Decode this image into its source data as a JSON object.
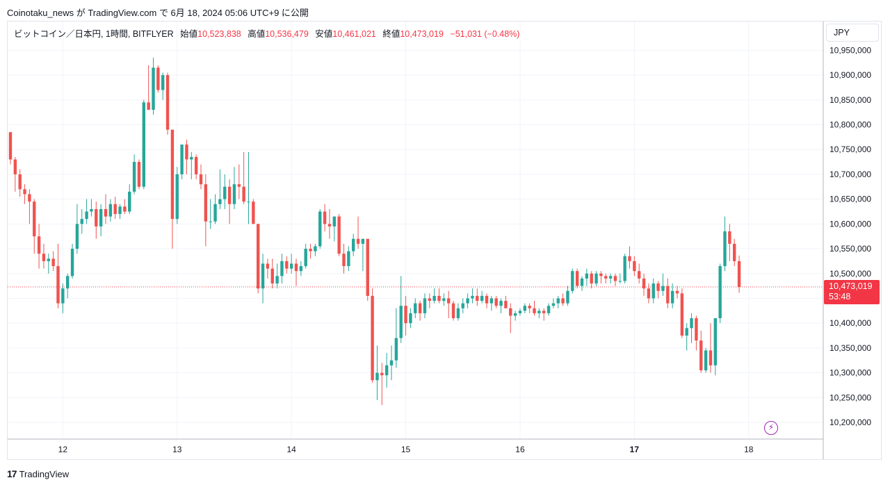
{
  "header": {
    "publish_line": "Coinotaku_news が TradingView.com で 6月 18, 2024 05:06 UTC+9 に公開"
  },
  "legend": {
    "symbol": "ビットコイン／日本円, 1時間, BITFLYER",
    "open_label": "始値",
    "open": "10,523,838",
    "high_label": "高値",
    "high": "10,536,479",
    "low_label": "安値",
    "low": "10,461,021",
    "close_label": "終値",
    "close": "10,473,019",
    "change": "−51,031 (−0.48%)"
  },
  "currency": "JPY",
  "price_tag": {
    "price": "10,473,019",
    "countdown": "53:48"
  },
  "footer": {
    "brand": "TradingView"
  },
  "colors": {
    "up": "#26a69a",
    "down": "#ef5350",
    "grid": "#f0f3fa",
    "last_price": "#f23645"
  },
  "icons": {
    "alert": "lightning-icon",
    "logo": "tradingview-logo-icon"
  },
  "chart_data": {
    "type": "candlestick",
    "ylim": [
      10175000,
      10975000
    ],
    "yticks": [
      "10,200,000",
      "10,250,000",
      "10,300,000",
      "10,350,000",
      "10,400,000",
      "10,450,000",
      "10,500,000",
      "10,550,000",
      "10,600,000",
      "10,650,000",
      "10,700,000",
      "10,750,000",
      "10,800,000",
      "10,850,000",
      "10,900,000",
      "10,950,000"
    ],
    "xticks": [
      {
        "label": "12",
        "hour": 11
      },
      {
        "label": "13",
        "hour": 35
      },
      {
        "label": "14",
        "hour": 59
      },
      {
        "label": "15",
        "hour": 83
      },
      {
        "label": "16",
        "hour": 107
      },
      {
        "label": "17",
        "hour": 131,
        "bold": true
      },
      {
        "label": "18",
        "hour": 155
      }
    ],
    "last_price": 10473019,
    "bars": [
      [
        10785000,
        10785000,
        10720000,
        10730000
      ],
      [
        10730000,
        10735000,
        10665000,
        10700000
      ],
      [
        10700000,
        10710000,
        10655000,
        10670000
      ],
      [
        10670000,
        10680000,
        10640000,
        10660000
      ],
      [
        10660000,
        10670000,
        10600000,
        10645000
      ],
      [
        10645000,
        10650000,
        10540000,
        10575000
      ],
      [
        10575000,
        10600000,
        10510000,
        10540000
      ],
      [
        10540000,
        10560000,
        10510000,
        10525000
      ],
      [
        10525000,
        10540000,
        10500000,
        10530000
      ],
      [
        10530000,
        10545000,
        10505000,
        10515000
      ],
      [
        10515000,
        10560000,
        10430000,
        10440000
      ],
      [
        10440000,
        10480000,
        10420000,
        10470000
      ],
      [
        10470000,
        10500000,
        10450000,
        10495000
      ],
      [
        10495000,
        10560000,
        10490000,
        10550000
      ],
      [
        10550000,
        10640000,
        10540000,
        10600000
      ],
      [
        10600000,
        10630000,
        10580000,
        10610000
      ],
      [
        10610000,
        10650000,
        10600000,
        10625000
      ],
      [
        10625000,
        10650000,
        10615000,
        10630000
      ],
      [
        10630000,
        10645000,
        10570000,
        10595000
      ],
      [
        10595000,
        10640000,
        10575000,
        10630000
      ],
      [
        10630000,
        10660000,
        10600000,
        10615000
      ],
      [
        10615000,
        10650000,
        10605000,
        10640000
      ],
      [
        10640000,
        10655000,
        10610000,
        10620000
      ],
      [
        10620000,
        10640000,
        10610000,
        10635000
      ],
      [
        10635000,
        10650000,
        10620000,
        10625000
      ],
      [
        10625000,
        10680000,
        10620000,
        10665000
      ],
      [
        10665000,
        10740000,
        10660000,
        10725000
      ],
      [
        10725000,
        10730000,
        10670000,
        10675000
      ],
      [
        10675000,
        10850000,
        10670000,
        10845000
      ],
      [
        10845000,
        10920000,
        10830000,
        10830000
      ],
      [
        10830000,
        10935000,
        10820000,
        10915000
      ],
      [
        10915000,
        10920000,
        10865000,
        10870000
      ],
      [
        10870000,
        10905000,
        10850000,
        10900000
      ],
      [
        10900000,
        10905000,
        10780000,
        10790000
      ],
      [
        10790000,
        10790000,
        10550000,
        10610000
      ],
      [
        10610000,
        10715000,
        10600000,
        10700000
      ],
      [
        10700000,
        10760000,
        10690000,
        10760000
      ],
      [
        10760000,
        10770000,
        10700000,
        10730000
      ],
      [
        10730000,
        10745000,
        10690000,
        10735000
      ],
      [
        10735000,
        10740000,
        10690000,
        10700000
      ],
      [
        10700000,
        10720000,
        10670000,
        10680000
      ],
      [
        10680000,
        10700000,
        10555000,
        10605000
      ],
      [
        10605000,
        10650000,
        10590000,
        10605000
      ],
      [
        10605000,
        10660000,
        10600000,
        10640000
      ],
      [
        10640000,
        10710000,
        10630000,
        10650000
      ],
      [
        10650000,
        10700000,
        10630000,
        10675000
      ],
      [
        10675000,
        10690000,
        10600000,
        10640000
      ],
      [
        10640000,
        10715000,
        10630000,
        10680000
      ],
      [
        10680000,
        10720000,
        10650000,
        10675000
      ],
      [
        10675000,
        10745000,
        10640000,
        10645000
      ],
      [
        10645000,
        10745000,
        10600000,
        10645000
      ],
      [
        10645000,
        10650000,
        10600000,
        10600000
      ],
      [
        10600000,
        10600000,
        10460000,
        10470000
      ],
      [
        10470000,
        10540000,
        10440000,
        10520000
      ],
      [
        10520000,
        10530000,
        10490000,
        10510000
      ],
      [
        10510000,
        10530000,
        10470000,
        10480000
      ],
      [
        10480000,
        10520000,
        10470000,
        10495000
      ],
      [
        10495000,
        10540000,
        10480000,
        10525000
      ],
      [
        10525000,
        10535000,
        10500000,
        10510000
      ],
      [
        10510000,
        10540000,
        10500000,
        10520000
      ],
      [
        10520000,
        10530000,
        10475000,
        10505000
      ],
      [
        10505000,
        10525000,
        10495000,
        10515000
      ],
      [
        10515000,
        10560000,
        10510000,
        10550000
      ],
      [
        10550000,
        10560000,
        10530000,
        10545000
      ],
      [
        10545000,
        10560000,
        10535000,
        10555000
      ],
      [
        10555000,
        10630000,
        10550000,
        10625000
      ],
      [
        10625000,
        10640000,
        10585000,
        10600000
      ],
      [
        10600000,
        10630000,
        10570000,
        10595000
      ],
      [
        10595000,
        10615000,
        10565000,
        10615000
      ],
      [
        10615000,
        10620000,
        10535000,
        10540000
      ],
      [
        10540000,
        10560000,
        10500000,
        10515000
      ],
      [
        10515000,
        10555000,
        10505000,
        10545000
      ],
      [
        10545000,
        10580000,
        10535000,
        10570000
      ],
      [
        10570000,
        10615000,
        10550000,
        10560000
      ],
      [
        10560000,
        10570000,
        10505000,
        10570000
      ],
      [
        10570000,
        10570000,
        10445000,
        10455000
      ],
      [
        10455000,
        10470000,
        10280000,
        10285000
      ],
      [
        10285000,
        10355000,
        10245000,
        10300000
      ],
      [
        10300000,
        10320000,
        10235000,
        10295000
      ],
      [
        10295000,
        10340000,
        10270000,
        10315000
      ],
      [
        10315000,
        10355000,
        10285000,
        10325000
      ],
      [
        10325000,
        10430000,
        10310000,
        10370000
      ],
      [
        10370000,
        10495000,
        10360000,
        10435000
      ],
      [
        10435000,
        10455000,
        10375000,
        10400000
      ],
      [
        10400000,
        10430000,
        10390000,
        10420000
      ],
      [
        10420000,
        10450000,
        10410000,
        10440000
      ],
      [
        10440000,
        10445000,
        10405000,
        10420000
      ],
      [
        10420000,
        10460000,
        10410000,
        10450000
      ],
      [
        10450000,
        10460000,
        10430000,
        10445000
      ],
      [
        10445000,
        10470000,
        10440000,
        10455000
      ],
      [
        10455000,
        10470000,
        10440000,
        10445000
      ],
      [
        10445000,
        10460000,
        10435000,
        10450000
      ],
      [
        10450000,
        10465000,
        10410000,
        10440000
      ],
      [
        10440000,
        10445000,
        10405000,
        10410000
      ],
      [
        10410000,
        10440000,
        10405000,
        10430000
      ],
      [
        10430000,
        10450000,
        10420000,
        10440000
      ],
      [
        10440000,
        10460000,
        10430000,
        10450000
      ],
      [
        10450000,
        10470000,
        10440000,
        10455000
      ],
      [
        10455000,
        10470000,
        10435000,
        10445000
      ],
      [
        10445000,
        10465000,
        10440000,
        10455000
      ],
      [
        10455000,
        10460000,
        10430000,
        10440000
      ],
      [
        10440000,
        10455000,
        10425000,
        10450000
      ],
      [
        10450000,
        10455000,
        10430000,
        10435000
      ],
      [
        10435000,
        10450000,
        10420000,
        10445000
      ],
      [
        10445000,
        10455000,
        10430000,
        10430000
      ],
      [
        10430000,
        10440000,
        10380000,
        10415000
      ],
      [
        10415000,
        10425000,
        10405000,
        10420000
      ],
      [
        10420000,
        10430000,
        10415000,
        10425000
      ],
      [
        10425000,
        10440000,
        10420000,
        10435000
      ],
      [
        10435000,
        10440000,
        10420000,
        10430000
      ],
      [
        10430000,
        10445000,
        10415000,
        10420000
      ],
      [
        10420000,
        10430000,
        10410000,
        10425000
      ],
      [
        10425000,
        10430000,
        10405000,
        10420000
      ],
      [
        10420000,
        10440000,
        10415000,
        10435000
      ],
      [
        10435000,
        10450000,
        10430000,
        10440000
      ],
      [
        10440000,
        10455000,
        10430000,
        10450000
      ],
      [
        10450000,
        10460000,
        10435000,
        10440000
      ],
      [
        10440000,
        10475000,
        10435000,
        10465000
      ],
      [
        10465000,
        10510000,
        10460000,
        10505000
      ],
      [
        10505000,
        10510000,
        10470000,
        10475000
      ],
      [
        10475000,
        10495000,
        10465000,
        10490000
      ],
      [
        10490000,
        10510000,
        10475000,
        10500000
      ],
      [
        10500000,
        10505000,
        10470000,
        10480000
      ],
      [
        10480000,
        10505000,
        10475000,
        10500000
      ],
      [
        10500000,
        10505000,
        10480000,
        10495000
      ],
      [
        10495000,
        10500000,
        10480000,
        10490000
      ],
      [
        10490000,
        10500000,
        10480000,
        10495000
      ],
      [
        10495000,
        10500000,
        10475000,
        10485000
      ],
      [
        10485000,
        10500000,
        10480000,
        10485000
      ],
      [
        10485000,
        10540000,
        10480000,
        10535000
      ],
      [
        10535000,
        10555000,
        10510000,
        10525000
      ],
      [
        10525000,
        10535000,
        10495000,
        10505000
      ],
      [
        10505000,
        10520000,
        10480000,
        10490000
      ],
      [
        10490000,
        10500000,
        10455000,
        10470000
      ],
      [
        10470000,
        10480000,
        10440000,
        10450000
      ],
      [
        10450000,
        10490000,
        10440000,
        10480000
      ],
      [
        10480000,
        10485000,
        10450000,
        10465000
      ],
      [
        10465000,
        10500000,
        10455000,
        10475000
      ],
      [
        10475000,
        10490000,
        10430000,
        10440000
      ],
      [
        10440000,
        10480000,
        10430000,
        10465000
      ],
      [
        10465000,
        10475000,
        10450000,
        10460000
      ],
      [
        10460000,
        10470000,
        10370000,
        10375000
      ],
      [
        10375000,
        10400000,
        10345000,
        10390000
      ],
      [
        10390000,
        10420000,
        10360000,
        10410000
      ],
      [
        10410000,
        10415000,
        10345000,
        10365000
      ],
      [
        10365000,
        10385000,
        10300000,
        10305000
      ],
      [
        10305000,
        10350000,
        10300000,
        10345000
      ],
      [
        10345000,
        10400000,
        10300000,
        10315000
      ],
      [
        10315000,
        10410000,
        10295000,
        10410000
      ],
      [
        10410000,
        10520000,
        10400000,
        10515000
      ],
      [
        10515000,
        10615000,
        10505000,
        10585000
      ],
      [
        10585000,
        10600000,
        10525000,
        10560000
      ],
      [
        10560000,
        10570000,
        10515000,
        10525000
      ],
      [
        10525000,
        10536479,
        10461021,
        10473019
      ]
    ]
  }
}
